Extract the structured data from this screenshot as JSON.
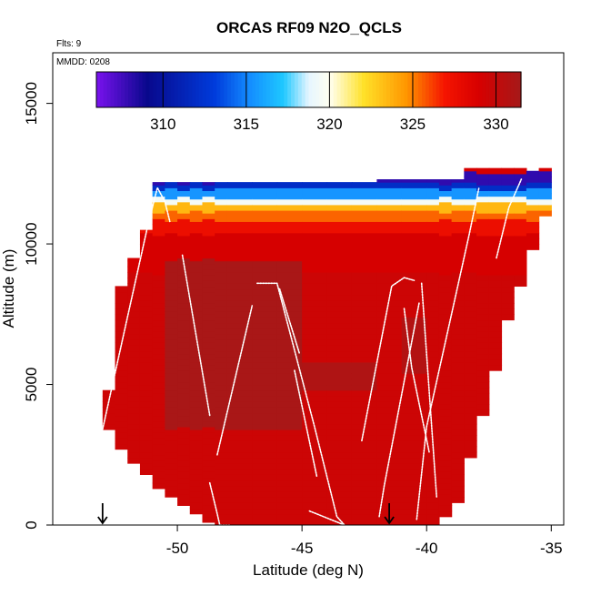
{
  "title": "ORCAS RF09 N2O_QCLS",
  "flights_label": "Flts: 9",
  "date_label": "MMDD: 0208",
  "colors": {
    "low": "#1a0ab0",
    "mid": "#ffffff",
    "high": "#b02020",
    "track": "#ffffff",
    "frame": "#000000"
  },
  "chart_data": {
    "type": "heatmap",
    "title": "ORCAS RF09 N2O_QCLS",
    "xlabel": "Latitude (deg N)",
    "ylabel": "Altitude (m)",
    "xlim": [
      -55,
      -34.5
    ],
    "ylim": [
      0,
      16800
    ],
    "x_ticks": [
      -50,
      -45,
      -40,
      -35
    ],
    "y_ticks": [
      0,
      5000,
      10000,
      15000
    ],
    "colorbar": {
      "min": 306,
      "max": 331.5,
      "ticks": [
        310,
        315,
        320,
        325,
        330
      ]
    },
    "markers": [
      {
        "lat": -53,
        "alt": 0,
        "symbol": "down-arrow"
      },
      {
        "lat": -41.5,
        "alt": 0,
        "symbol": "down-arrow"
      }
    ],
    "columns": [
      {
        "lat": -53.0,
        "bottom": 3400,
        "top": 4800
      },
      {
        "lat": -52.5,
        "bottom": 2700,
        "top": 8500
      },
      {
        "lat": -52.0,
        "bottom": 2200,
        "top": 9500
      },
      {
        "lat": -51.5,
        "bottom": 1800,
        "top": 10500
      },
      {
        "lat": -51.0,
        "bottom": 1300,
        "top": 12200
      },
      {
        "lat": -50.5,
        "bottom": 1000,
        "top": 12200
      },
      {
        "lat": -50.0,
        "bottom": 700,
        "top": 12200
      },
      {
        "lat": -49.5,
        "bottom": 400,
        "top": 12200
      },
      {
        "lat": -49.0,
        "bottom": 100,
        "top": 12200
      },
      {
        "lat": -48.5,
        "bottom": 0,
        "top": 12200
      },
      {
        "lat": -48.0,
        "bottom": 0,
        "top": 12200
      },
      {
        "lat": -47.0,
        "bottom": 0,
        "top": 12200
      },
      {
        "lat": -46.0,
        "bottom": 0,
        "top": 12200
      },
      {
        "lat": -45.0,
        "bottom": 0,
        "top": 12200
      },
      {
        "lat": -44.0,
        "bottom": 0,
        "top": 12200
      },
      {
        "lat": -43.0,
        "bottom": 0,
        "top": 12200
      },
      {
        "lat": -42.0,
        "bottom": 0,
        "top": 12300
      },
      {
        "lat": -41.0,
        "bottom": 0,
        "top": 12300
      },
      {
        "lat": -40.0,
        "bottom": 0,
        "top": 12300
      },
      {
        "lat": -39.5,
        "bottom": 300,
        "top": 12300
      },
      {
        "lat": -39.0,
        "bottom": 800,
        "top": 12300
      },
      {
        "lat": -38.5,
        "bottom": 2400,
        "top": 12700
      },
      {
        "lat": -38.0,
        "bottom": 3900,
        "top": 12700
      },
      {
        "lat": -37.5,
        "bottom": 5500,
        "top": 12700
      },
      {
        "lat": -37.0,
        "bottom": 7300,
        "top": 12700
      },
      {
        "lat": -36.5,
        "bottom": 8500,
        "top": 12700
      },
      {
        "lat": -36.0,
        "bottom": 9800,
        "top": 12600
      },
      {
        "lat": -35.5,
        "bottom": 11000,
        "top": 12700
      }
    ],
    "layers": [
      {
        "from": 0,
        "to": 9000,
        "value": 329.5
      },
      {
        "from": 9000,
        "to": 10400,
        "value": 329.0
      },
      {
        "from": 10400,
        "to": 10900,
        "value": 327.5
      },
      {
        "from": 10900,
        "to": 11200,
        "value": 325.5
      },
      {
        "from": 11200,
        "to": 11500,
        "value": 323.5
      },
      {
        "from": 11500,
        "to": 11700,
        "value": 319.5
      },
      {
        "from": 11700,
        "to": 12000,
        "value": 315.5
      },
      {
        "from": 12000,
        "to": 12200,
        "value": 312.0
      },
      {
        "from": 12200,
        "to": 12600,
        "value": 308.0
      },
      {
        "from": 12600,
        "to": 12700,
        "value": 329.0
      }
    ],
    "patches": [
      {
        "lat_from": -50.5,
        "lat_to": -45.5,
        "alt_from": 3500,
        "alt_to": 9500,
        "value": 331.3
      },
      {
        "lat_from": -45.5,
        "lat_to": -42.5,
        "alt_from": 4800,
        "alt_to": 5800,
        "value": 331.0
      },
      {
        "lat_from": -41.5,
        "lat_to": -40.5,
        "alt_from": 5500,
        "alt_to": 7500,
        "value": 330.8
      }
    ],
    "tracks": [
      [
        [
          -53.0,
          3400
        ],
        [
          -51.2,
          10600
        ],
        [
          -50.8,
          12000
        ],
        [
          -50.5,
          11500
        ],
        [
          -50.3,
          10800
        ]
      ],
      [
        [
          -49.8,
          9600
        ],
        [
          -48.7,
          3900
        ]
      ],
      [
        [
          -48.4,
          2500
        ],
        [
          -47.0,
          7800
        ]
      ],
      [
        [
          -46.8,
          8600
        ],
        [
          -46.0,
          8600
        ],
        [
          -44.5,
          3500
        ],
        [
          -43.6,
          300
        ],
        [
          -43.3,
          0
        ]
      ],
      [
        [
          -48.7,
          1500
        ],
        [
          -48.4,
          400
        ],
        [
          -48.3,
          0
        ],
        [
          -47.9,
          0
        ]
      ],
      [
        [
          -45.9,
          8400
        ],
        [
          -45.1,
          6100
        ]
      ],
      [
        [
          -45.3,
          5500
        ],
        [
          -44.4,
          1700
        ]
      ],
      [
        [
          -44.7,
          500
        ],
        [
          -43.3,
          0
        ]
      ],
      [
        [
          -42.6,
          3000
        ],
        [
          -41.4,
          8500
        ],
        [
          -40.9,
          8800
        ],
        [
          -40.5,
          8700
        ]
      ],
      [
        [
          -41.9,
          300
        ],
        [
          -41.7,
          1400
        ],
        [
          -40.3,
          7900
        ]
      ],
      [
        [
          -40.9,
          7700
        ],
        [
          -40.6,
          5600
        ],
        [
          -39.9,
          2600
        ]
      ],
      [
        [
          -40.2,
          8600
        ],
        [
          -39.6,
          1000
        ]
      ],
      [
        [
          -40.4,
          200
        ],
        [
          -40.0,
          3500
        ],
        [
          -38.3,
          10300
        ],
        [
          -37.9,
          12000
        ]
      ],
      [
        [
          -37.2,
          9500
        ],
        [
          -36.7,
          11300
        ],
        [
          -36.2,
          12300
        ]
      ]
    ]
  }
}
